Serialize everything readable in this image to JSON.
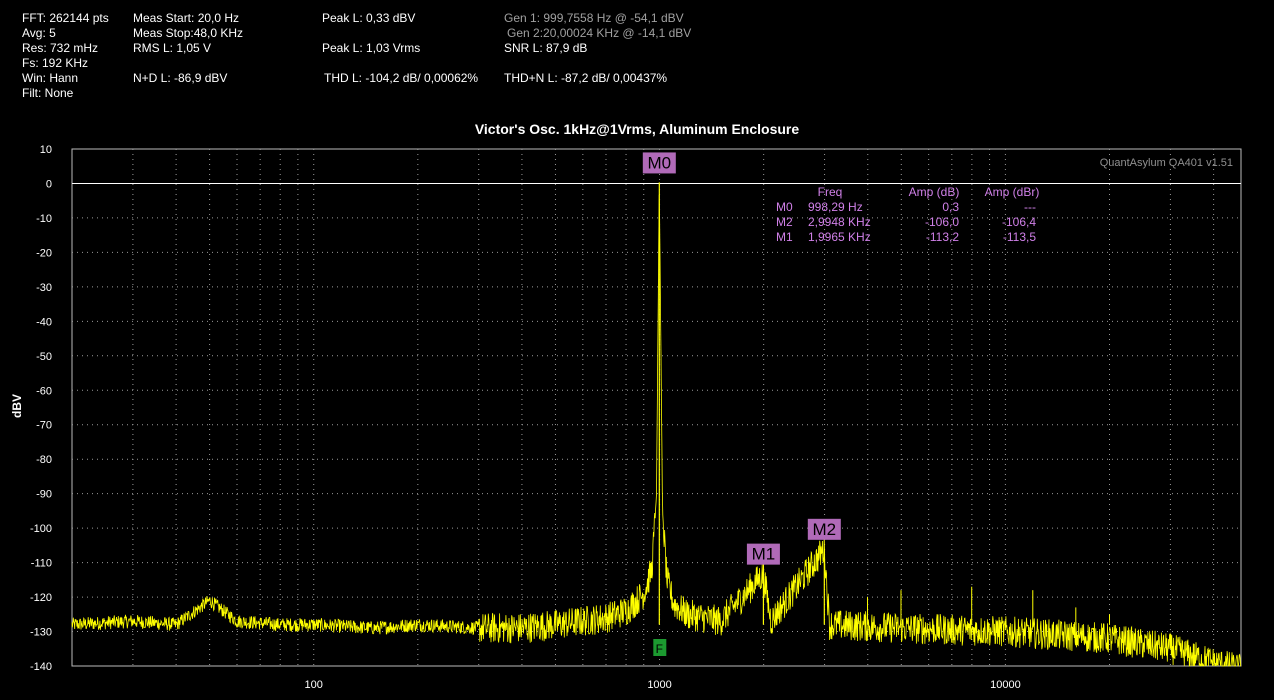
{
  "header": {
    "fft": "FFT: 262144 pts",
    "avg": "Avg: 5",
    "res": "Res: 732 mHz",
    "fs": "Fs: 192 KHz",
    "win": "Win: Hann",
    "filt": "Filt: None",
    "meas_start": "Meas Start: 20,0 Hz",
    "meas_stop": "Meas Stop:48,0 KHz",
    "rms": "RMS L: 1,05 V",
    "nd": "N+D L: -86,9 dBV",
    "peak_dbv": "Peak L: 0,33 dBV",
    "peak_vrms": "Peak L: 1,03 Vrms",
    "thd": "THD L: -104,2 dB/ 0,00062%",
    "gen1": "Gen 1: 999,7558 Hz @ -54,1  dBV",
    "gen2": "Gen 2:20,00024 KHz @ -14,1  dBV",
    "snr": "SNR L: 87,9 dB",
    "thdn": "THD+N L: -87,2 dB/ 0,00437%"
  },
  "chart_data": {
    "type": "line",
    "title": "Victor's Osc. 1kHz@1Vrms, Aluminum Enclosure",
    "ylabel": "dBV",
    "xlabel": "",
    "xscale": "log",
    "xlim": [
      20,
      48000
    ],
    "ylim": [
      -140,
      10
    ],
    "x_ticks": [
      "100",
      "1000",
      "10000"
    ],
    "y_ticks": [
      "10",
      "0",
      "-10",
      "-20",
      "-30",
      "-40",
      "-50",
      "-60",
      "-70",
      "-80",
      "-90",
      "-100",
      "-110",
      "-120",
      "-130",
      "-140"
    ],
    "grid": true,
    "version": "QuantAsylum QA401 v1.51",
    "reference_line_db": 0,
    "filter_marker": "F",
    "series": [
      {
        "color": "#ffff00",
        "points": [
          [
            20,
            -128
          ],
          [
            30,
            -127
          ],
          [
            40,
            -128
          ],
          [
            50,
            -121
          ],
          [
            60,
            -127
          ],
          [
            80,
            -128
          ],
          [
            100,
            -128
          ],
          [
            150,
            -129
          ],
          [
            200,
            -128
          ],
          [
            300,
            -129
          ],
          [
            400,
            -129
          ],
          [
            500,
            -128
          ],
          [
            600,
            -127
          ],
          [
            700,
            -126
          ],
          [
            800,
            -124
          ],
          [
            900,
            -119
          ],
          [
            950,
            -112
          ],
          [
            980,
            -90
          ],
          [
            998.29,
            0.3
          ],
          [
            1020,
            -95
          ],
          [
            1050,
            -115
          ],
          [
            1100,
            -122
          ],
          [
            1200,
            -125
          ],
          [
            1500,
            -127
          ],
          [
            1996.5,
            -113.2
          ],
          [
            2100,
            -127
          ],
          [
            2994.8,
            -106
          ],
          [
            3100,
            -128
          ],
          [
            5000,
            -129
          ],
          [
            10000,
            -130
          ],
          [
            20000,
            -132
          ],
          [
            30000,
            -135
          ],
          [
            40000,
            -139
          ],
          [
            48000,
            -141
          ]
        ]
      }
    ],
    "spurs": [
      {
        "freq": 3993,
        "db": -120
      },
      {
        "freq": 4990,
        "db": -118
      },
      {
        "freq": 7990,
        "db": -117
      },
      {
        "freq": 12000,
        "db": -118
      },
      {
        "freq": 15980,
        "db": -123
      },
      {
        "freq": 20000,
        "db": -125
      }
    ],
    "markers": [
      {
        "label": "M0",
        "freq": 998.29,
        "db": 0.3
      },
      {
        "label": "M1",
        "freq": 1996.5,
        "db": -113.2
      },
      {
        "label": "M2",
        "freq": 2994.8,
        "db": -106.0
      }
    ],
    "marker_table": {
      "headers": [
        "Freq",
        "Amp (dB)",
        "Amp (dBr)"
      ],
      "rows": [
        [
          "M0",
          "998,29 Hz",
          "0,3",
          "---"
        ],
        [
          "M2",
          "2,9948 KHz",
          "-106,0",
          "-106,4"
        ],
        [
          "M1",
          "1,9965 KHz",
          "-113,2",
          "-113,5"
        ]
      ]
    }
  }
}
